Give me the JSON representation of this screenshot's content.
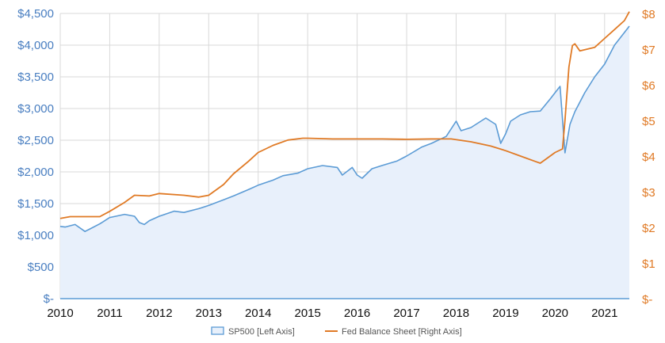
{
  "chart_data": {
    "type": "line",
    "title": "",
    "xlabel": "",
    "ylabel": "",
    "x_ticks": [
      "2010",
      "2011",
      "2012",
      "2013",
      "2014",
      "2015",
      "2016",
      "2017",
      "2018",
      "2019",
      "2020",
      "2021"
    ],
    "x_range": [
      2010,
      2021.5
    ],
    "y_left": {
      "range": [
        0,
        4500
      ],
      "ticks": [
        0,
        500,
        1000,
        1500,
        2000,
        2500,
        3000,
        3500,
        4000,
        4500
      ],
      "tick_labels": [
        "$-",
        "$500",
        "$1,000",
        "$1,500",
        "$2,000",
        "$2,500",
        "$3,000",
        "$3,500",
        "$4,000",
        "$4,500"
      ]
    },
    "y_right": {
      "range": [
        0,
        8
      ],
      "ticks": [
        0,
        1,
        2,
        3,
        4,
        5,
        6,
        7,
        8
      ],
      "tick_labels": [
        "$-",
        "$1",
        "$2",
        "$3",
        "$4",
        "$5",
        "$6",
        "$7",
        "$8"
      ]
    },
    "grid": true,
    "legend_position": "bottom-center",
    "series": [
      {
        "name": "SP500 [Left Axis]",
        "axis": "left",
        "style": "area",
        "color": "#5b9bd5",
        "fill": "#e8f0fb",
        "x": [
          2010.0,
          2010.1,
          2010.3,
          2010.5,
          2010.6,
          2010.8,
          2011.0,
          2011.3,
          2011.5,
          2011.6,
          2011.7,
          2011.8,
          2012.0,
          2012.3,
          2012.5,
          2012.8,
          2013.0,
          2013.3,
          2013.5,
          2013.8,
          2014.0,
          2014.3,
          2014.5,
          2014.8,
          2015.0,
          2015.3,
          2015.6,
          2015.7,
          2015.9,
          2016.0,
          2016.1,
          2016.3,
          2016.5,
          2016.8,
          2017.0,
          2017.3,
          2017.5,
          2017.8,
          2018.0,
          2018.1,
          2018.3,
          2018.6,
          2018.8,
          2018.9,
          2019.0,
          2019.1,
          2019.3,
          2019.5,
          2019.7,
          2019.9,
          2020.0,
          2020.1,
          2020.2,
          2020.3,
          2020.4,
          2020.6,
          2020.8,
          2021.0,
          2021.2,
          2021.4,
          2021.5
        ],
        "y": [
          1140,
          1130,
          1170,
          1060,
          1100,
          1180,
          1280,
          1330,
          1300,
          1200,
          1170,
          1230,
          1300,
          1380,
          1360,
          1420,
          1470,
          1560,
          1620,
          1720,
          1790,
          1870,
          1940,
          1980,
          2050,
          2100,
          2070,
          1950,
          2070,
          1950,
          1900,
          2050,
          2100,
          2170,
          2250,
          2390,
          2450,
          2560,
          2800,
          2650,
          2700,
          2850,
          2750,
          2450,
          2600,
          2800,
          2900,
          2950,
          2960,
          3150,
          3250,
          3350,
          2300,
          2750,
          2950,
          3250,
          3500,
          3700,
          4000,
          4200,
          4300
        ]
      },
      {
        "name": "Fed Balance Sheet [Right Axis]",
        "axis": "right",
        "style": "line",
        "color": "#e07a25",
        "x": [
          2010.0,
          2010.2,
          2010.5,
          2010.8,
          2011.0,
          2011.3,
          2011.5,
          2011.8,
          2012.0,
          2012.5,
          2012.8,
          2013.0,
          2013.3,
          2013.5,
          2013.8,
          2014.0,
          2014.3,
          2014.6,
          2014.9,
          2015.0,
          2015.5,
          2016.0,
          2016.5,
          2017.0,
          2017.5,
          2017.9,
          2018.3,
          2018.7,
          2019.0,
          2019.3,
          2019.6,
          2019.7,
          2019.8,
          2020.0,
          2020.15,
          2020.2,
          2020.28,
          2020.35,
          2020.4,
          2020.5,
          2020.8,
          2021.0,
          2021.2,
          2021.4,
          2021.5
        ],
        "y": [
          2.25,
          2.3,
          2.3,
          2.3,
          2.45,
          2.7,
          2.9,
          2.88,
          2.95,
          2.9,
          2.85,
          2.9,
          3.2,
          3.5,
          3.85,
          4.1,
          4.3,
          4.45,
          4.5,
          4.5,
          4.48,
          4.48,
          4.48,
          4.47,
          4.48,
          4.48,
          4.4,
          4.28,
          4.15,
          4.0,
          3.85,
          3.8,
          3.9,
          4.1,
          4.2,
          5.0,
          6.5,
          7.1,
          7.15,
          6.95,
          7.05,
          7.3,
          7.55,
          7.8,
          8.05
        ]
      }
    ]
  }
}
